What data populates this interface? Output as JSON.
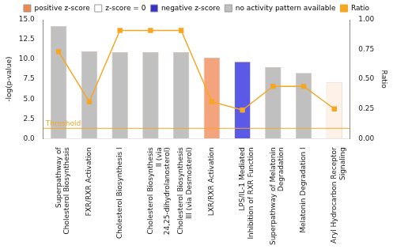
{
  "chart_data": {
    "type": "bar",
    "categories": [
      "Superpathway of Cholesterol Biosynthesis",
      "FXR/RXR Activation",
      "Cholesterol Biosynthesis I",
      "Cholesterol Biosynthesis II (via 24,25-dihydrolanosterol)",
      "Cholesterol Biosynthesis III (via Desmosterol)",
      "LXR/RXR Activation",
      "LPS/IL-1 Mediated Inhibition of RXR Function",
      "Superpathway of Melatonin Degradation",
      "Melatonin Degradation I",
      "Aryl Hydrocarbon Receptor Signaling"
    ],
    "series": [
      {
        "name": "-log(p-value)",
        "type": "bar",
        "colors": [
          "#c0c0c0",
          "#c0c0c0",
          "#c0c0c0",
          "#c0c0c0",
          "#c0c0c0",
          "#f4a47c",
          "#5a5ae6",
          "#c0c0c0",
          "#c0c0c0",
          "#fdf1e8"
        ],
        "values": [
          14.2,
          11.0,
          10.9,
          10.9,
          10.9,
          10.2,
          9.7,
          9.0,
          8.3,
          7.1
        ]
      },
      {
        "name": "Ratio",
        "type": "line",
        "axis": "y2",
        "color": "#f5a623",
        "marker": "square",
        "values": [
          0.73,
          0.31,
          0.91,
          0.91,
          0.91,
          0.31,
          0.24,
          0.44,
          0.44,
          0.25
        ]
      }
    ],
    "color_key": [
      {
        "name": "positive z-score",
        "color": "#f08a4b"
      },
      {
        "name": "z-score = 0",
        "color": "#ffffff"
      },
      {
        "name": "negative z-score",
        "color": "#3333cc"
      },
      {
        "name": "no activity pattern available",
        "color": "#c0c0c0"
      }
    ],
    "y_label": "-log(p-value)",
    "y2_label": "Ratio",
    "ylim": [
      0,
      15
    ],
    "yticks": [
      {
        "value": 0,
        "label": "0.0"
      },
      {
        "value": 2.5,
        "label": "2.5"
      },
      {
        "value": 5,
        "label": "5.0"
      },
      {
        "value": 7.5,
        "label": "7.5"
      },
      {
        "value": 10,
        "label": "10.0"
      },
      {
        "value": 12.5,
        "label": "12.5"
      },
      {
        "value": 15,
        "label": "15.0"
      }
    ],
    "y2lim": [
      0,
      1
    ],
    "y2ticks": [
      {
        "value": 0,
        "label": "0.00"
      },
      {
        "value": 0.25,
        "label": "0.25"
      },
      {
        "value": 0.5,
        "label": "0.50"
      },
      {
        "value": 0.75,
        "label": "0.75"
      },
      {
        "value": 1,
        "label": "1.00"
      }
    ],
    "annotations": [
      {
        "text": "Threshold",
        "y": 1.3,
        "color": "#f5a623"
      }
    ],
    "legend": "top",
    "grid": false
  }
}
